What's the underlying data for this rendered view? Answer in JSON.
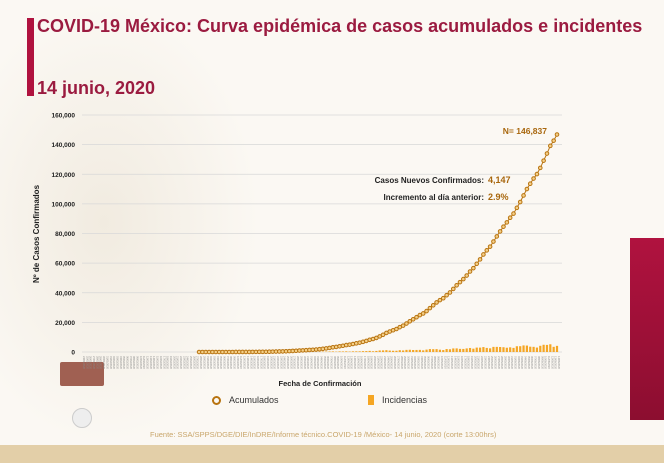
{
  "title": "COVID-19 México: Curva epidémica de casos acumulados e incidentes",
  "date": "14 junio, 2020",
  "source": "Fuente: SSA/SPPS/DGE/DIE/InDRE/Informe técnico.COVID-19 /México- 14 junio, 2020 (corte 13:00hrs)",
  "colors": {
    "brand": "#9b1b40",
    "acumulados": "#b8730f",
    "incidencias": "#f5a623"
  },
  "chart_data": {
    "type": "line",
    "xlabel": "Fecha de Confirmación",
    "ylabel": "Nº de Casos Confirmados",
    "ylim": [
      0,
      160000
    ],
    "yticks": [
      "0",
      "20,000",
      "40,000",
      "60,000",
      "80,000",
      "100,000",
      "120,000",
      "140,000",
      "160,000"
    ],
    "xlim": [
      "2020-01-24",
      "2020-06-14"
    ],
    "grid": true,
    "legend_placement": "bottom",
    "series_start": "2020-02-28",
    "series": [
      {
        "name": "Acumulados",
        "type": "line-markers",
        "values": [
          1,
          2,
          4,
          4,
          5,
          5,
          5,
          6,
          7,
          7,
          7,
          11,
          12,
          15,
          26,
          41,
          53,
          82,
          93,
          118,
          164,
          203,
          251,
          316,
          367,
          405,
          475,
          585,
          717,
          848,
          993,
          1094,
          1215,
          1378,
          1510,
          1688,
          1890,
          2143,
          2439,
          2785,
          3181,
          3441,
          3844,
          4219,
          4661,
          4961,
          5399,
          5847,
          6297,
          6875,
          7497,
          8261,
          8772,
          9501,
          10544,
          11633,
          12872,
          13842,
          14677,
          15529,
          16752,
          17799,
          19224,
          20739,
          22088,
          23471,
          24905,
          26025,
          27634,
          29616,
          31522,
          33460,
          35022,
          36327,
          38324,
          40186,
          42595,
          45032,
          47144,
          49219,
          51633,
          54346,
          56594,
          59567,
          62527,
          65856,
          68620,
          71105,
          74560,
          78023,
          81400,
          84627,
          87512,
          90664,
          93435,
          97326,
          101238,
          105680,
          110026,
          113619,
          117103,
          120102,
          124301,
          129184,
          133974,
          139196,
          142690,
          146837
        ]
      },
      {
        "name": "Incidencias",
        "type": "bar",
        "values": [
          1,
          1,
          2,
          0,
          1,
          0,
          0,
          1,
          1,
          0,
          0,
          4,
          1,
          3,
          11,
          15,
          12,
          29,
          11,
          25,
          46,
          39,
          48,
          65,
          51,
          38,
          70,
          110,
          132,
          131,
          145,
          101,
          121,
          163,
          132,
          178,
          202,
          253,
          296,
          346,
          396,
          260,
          403,
          375,
          442,
          300,
          438,
          448,
          450,
          578,
          622,
          764,
          511,
          729,
          1043,
          1089,
          1239,
          970,
          835,
          852,
          1223,
          1047,
          1425,
          1515,
          1349,
          1383,
          1434,
          1120,
          1609,
          1982,
          1906,
          1938,
          1562,
          1305,
          1997,
          1862,
          2409,
          2437,
          2112,
          2075,
          2414,
          2713,
          2248,
          2973,
          2960,
          3329,
          2764,
          2485,
          3455,
          3463,
          3377,
          3227,
          2885,
          3152,
          2771,
          3891,
          3912,
          4442,
          4346,
          3593,
          3484,
          2999,
          4199,
          4883,
          4790,
          5222,
          3494,
          4147
        ]
      }
    ],
    "annotations": {
      "total": "N= 146,837",
      "nuevos_label": "Casos Nuevos Confirmados:",
      "nuevos_value": "4,147",
      "incremento_label": "Incremento al día anterior:",
      "incremento_value": "2.9%"
    }
  }
}
